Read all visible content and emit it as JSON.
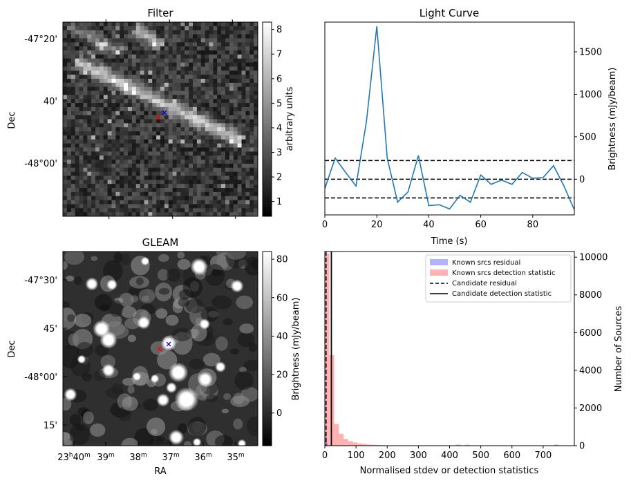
{
  "filter_panel": {
    "title": "Filter",
    "ylabel": "Dec",
    "dec_ticks": [
      "-47°20'",
      "40'",
      "-48°00'"
    ],
    "colorbar_label": "arbitrary units",
    "colorbar_range": [
      0.4,
      8.3
    ],
    "colorbar_ticks": [
      1,
      2,
      3,
      4,
      5,
      6,
      7,
      8
    ],
    "colormap": "gray",
    "markers": [
      {
        "symbol": "x",
        "color": "#ff0000"
      },
      {
        "symbol": "x",
        "color": "#0000ff"
      }
    ]
  },
  "gleam_panel": {
    "title": "GLEAM",
    "ylabel": "Dec",
    "xlabel": "RA",
    "dec_ticks": [
      "-47°30'",
      "45'",
      "-48°00'",
      "15'"
    ],
    "ra_ticks": [
      "23h40m",
      "39m",
      "38m",
      "37m",
      "36m",
      "35m"
    ],
    "ra_ticks_parts": [
      {
        "h": "23",
        "hs": "h",
        "m": "40",
        "ms": "m"
      },
      {
        "h": "",
        "hs": "",
        "m": "39",
        "ms": "m"
      },
      {
        "h": "",
        "hs": "",
        "m": "38",
        "ms": "m"
      },
      {
        "h": "",
        "hs": "",
        "m": "37",
        "ms": "m"
      },
      {
        "h": "",
        "hs": "",
        "m": "36",
        "ms": "m"
      },
      {
        "h": "",
        "hs": "",
        "m": "35",
        "ms": "m"
      }
    ],
    "colorbar_label": "Brightness (mJy/beam)",
    "colorbar_range": [
      -17,
      84
    ],
    "colorbar_ticks": [
      0,
      20,
      40,
      60,
      80
    ],
    "colormap": "gray",
    "markers": [
      {
        "symbol": "x",
        "color": "#ff0000"
      },
      {
        "symbol": "x",
        "color": "#0000ff"
      }
    ]
  },
  "chart_data": [
    {
      "type": "line",
      "title": "Light Curve",
      "xlabel": "Time (s)",
      "ylabel": "Brightness (mJy/beam)",
      "xlim": [
        0,
        96
      ],
      "ylim": [
        -420,
        1850
      ],
      "xticks": [
        0,
        20,
        40,
        60,
        80
      ],
      "yticks": [
        0,
        500,
        1000,
        1500
      ],
      "y_axis_side": "right",
      "series": [
        {
          "color": "#1f77b4",
          "x": [
            0,
            4,
            8,
            12,
            16,
            20,
            24,
            28,
            32,
            36,
            40,
            44,
            48,
            52,
            56,
            60,
            64,
            68,
            72,
            76,
            80,
            84,
            88,
            92,
            96
          ],
          "y": [
            -110,
            250,
            80,
            -80,
            680,
            1800,
            250,
            -270,
            -150,
            280,
            -310,
            -300,
            -350,
            -190,
            -270,
            50,
            -60,
            -10,
            -60,
            80,
            10,
            20,
            160,
            -80,
            -360
          ]
        }
      ],
      "hlines": [
        {
          "y": 220,
          "style": "dashed",
          "color": "#000000"
        },
        {
          "y": 0,
          "style": "dashed",
          "color": "#000000"
        },
        {
          "y": -220,
          "style": "dashed",
          "color": "#000000"
        }
      ]
    },
    {
      "type": "histogram",
      "xlabel": "Normalised stdev or detection statistics",
      "ylabel": "Number of Sources",
      "xlim": [
        0,
        800
      ],
      "ylim": [
        0,
        10300
      ],
      "xticks": [
        0,
        100,
        200,
        300,
        400,
        500,
        600,
        700
      ],
      "yticks": [
        0,
        2000,
        4000,
        6000,
        8000,
        10000
      ],
      "y_axis_side": "right",
      "legend_position": "top-right",
      "series": [
        {
          "name": "Known srcs residual",
          "color": "#0000ff",
          "alpha": 0.3,
          "bins": [
            0,
            2,
            4,
            6,
            8,
            10
          ],
          "counts": [
            280,
            750,
            480,
            180,
            60
          ]
        },
        {
          "name": "Known srcs detection statistic",
          "color": "#ff0000",
          "alpha": 0.3,
          "bins": [
            0,
            15,
            30,
            45,
            60,
            75,
            90,
            105,
            120,
            135,
            150,
            165,
            180,
            195,
            210,
            225,
            240,
            255,
            270,
            285,
            300,
            315,
            330,
            345,
            360,
            375,
            390,
            405,
            420,
            435,
            450,
            465,
            480,
            495,
            510,
            525,
            540,
            555,
            570,
            585,
            600,
            615,
            630,
            645,
            660,
            675,
            690,
            705,
            720,
            735,
            750,
            765
          ],
          "counts": [
            10200,
            4800,
            1150,
            630,
            360,
            240,
            170,
            120,
            90,
            60,
            50,
            40,
            30,
            20,
            15,
            12,
            10,
            15,
            10,
            10,
            10,
            5,
            5,
            10,
            5,
            5,
            5,
            5,
            60,
            5,
            50,
            5,
            5,
            5,
            5,
            5,
            5,
            5,
            5,
            5,
            5,
            5,
            5,
            5,
            5,
            5,
            5,
            5,
            5,
            60,
            5
          ]
        },
        {
          "name": "Candidate residual",
          "style": "dashed",
          "color": "#000000",
          "x": 4
        },
        {
          "name": "Candidate detection statistic",
          "style": "solid",
          "color": "#000000",
          "x": 21
        }
      ]
    }
  ]
}
